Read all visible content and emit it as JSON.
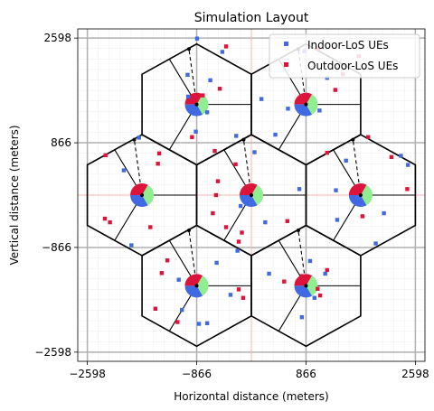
{
  "chart_data": {
    "type": "scatter",
    "title": "Simulation Layout",
    "xlabel": "Horizontal distance (meters)",
    "ylabel": "Vertical distance (meters)",
    "xlim": [
      -2750,
      2750
    ],
    "ylim": [
      -2750,
      2750
    ],
    "xticks": [
      -2598,
      -866,
      866,
      2598
    ],
    "xtick_labels": [
      "−2598",
      "−866",
      "866",
      "2598"
    ],
    "yticks": [
      -2598,
      -866,
      866,
      2598
    ],
    "ytick_labels": [
      "−2598",
      "−866",
      "866",
      "2598"
    ],
    "grid": true,
    "legend": {
      "placement": "top-right",
      "entries": [
        {
          "label": "Indoor-LoS UEs",
          "color": "#4169E1"
        },
        {
          "label": "Outdoor-LoS UEs",
          "color": "#DC143C"
        }
      ]
    },
    "cell_radius": 1000,
    "sites": [
      {
        "name": "site-1",
        "x": 0,
        "y": 0
      },
      {
        "name": "site-2",
        "x": 1732,
        "y": 0
      },
      {
        "name": "site-3",
        "x": -1732,
        "y": 0
      },
      {
        "name": "site-4",
        "x": 866,
        "y": 1500
      },
      {
        "name": "site-5",
        "x": -866,
        "y": 1500
      },
      {
        "name": "site-6",
        "x": 866,
        "y": -1500
      },
      {
        "name": "site-7",
        "x": -866,
        "y": -1500
      }
    ],
    "sector_colors": [
      "#90EE90",
      "#4169E1",
      "#DC143C"
    ],
    "series": [
      {
        "name": "Indoor-LoS UEs",
        "color": "#4169E1",
        "points": [
          [
            -860,
            2590
          ],
          [
            -460,
            2370
          ],
          [
            -650,
            1900
          ],
          [
            -1010,
            1990
          ],
          [
            -1000,
            1630
          ],
          [
            -700,
            1370
          ],
          [
            160,
            1590
          ],
          [
            840,
            2380
          ],
          [
            1200,
            1940
          ],
          [
            1080,
            1400
          ],
          [
            580,
            1430
          ],
          [
            380,
            1000
          ],
          [
            -240,
            980
          ],
          [
            -880,
            1050
          ],
          [
            -1780,
            950
          ],
          [
            -2020,
            410
          ],
          [
            -1900,
            -830
          ],
          [
            50,
            710
          ],
          [
            -170,
            -180
          ],
          [
            220,
            -450
          ],
          [
            1340,
            80
          ],
          [
            760,
            100
          ],
          [
            1360,
            -410
          ],
          [
            2370,
            650
          ],
          [
            2480,
            500
          ],
          [
            2100,
            -300
          ],
          [
            1970,
            -800
          ],
          [
            1500,
            570
          ],
          [
            -550,
            -1120
          ],
          [
            -1150,
            -1400
          ],
          [
            -1100,
            -1900
          ],
          [
            -700,
            -2120
          ],
          [
            -830,
            -2130
          ],
          [
            -330,
            -1650
          ],
          [
            -220,
            -920
          ],
          [
            280,
            -1300
          ],
          [
            800,
            -2020
          ],
          [
            930,
            -1090
          ],
          [
            1170,
            -1300
          ],
          [
            1000,
            -1700
          ]
        ]
      },
      {
        "name": "Outdoor-LoS UEs",
        "color": "#DC143C",
        "points": [
          [
            -400,
            2460
          ],
          [
            -500,
            1760
          ],
          [
            -770,
            1650
          ],
          [
            1060,
            2430
          ],
          [
            1700,
            2300
          ],
          [
            1330,
            1740
          ],
          [
            1450,
            2000
          ],
          [
            -940,
            960
          ],
          [
            -2310,
            660
          ],
          [
            -1460,
            690
          ],
          [
            -1480,
            520
          ],
          [
            -2320,
            -390
          ],
          [
            -2240,
            -450
          ],
          [
            -1600,
            -530
          ],
          [
            -580,
            730
          ],
          [
            -250,
            510
          ],
          [
            -530,
            230
          ],
          [
            -610,
            -300
          ],
          [
            -400,
            -530
          ],
          [
            -150,
            -620
          ],
          [
            -560,
            0
          ],
          [
            570,
            -430
          ],
          [
            1200,
            700
          ],
          [
            1850,
            960
          ],
          [
            2220,
            630
          ],
          [
            2470,
            100
          ],
          [
            1760,
            -350
          ],
          [
            -200,
            -770
          ],
          [
            -1330,
            -1080
          ],
          [
            -1420,
            -1290
          ],
          [
            -1520,
            -1880
          ],
          [
            -200,
            -1560
          ],
          [
            -130,
            -1700
          ],
          [
            -1170,
            -2100
          ],
          [
            520,
            -1430
          ],
          [
            1200,
            -1240
          ],
          [
            1050,
            -1550
          ],
          [
            1090,
            -1660
          ],
          [
            800,
            -1340
          ]
        ]
      }
    ]
  }
}
